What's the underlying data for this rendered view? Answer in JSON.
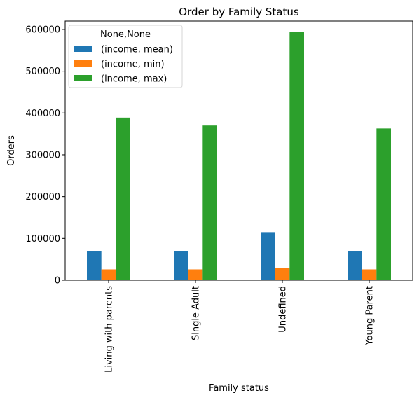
{
  "chart_data": {
    "type": "bar",
    "title": "Order by Family Status",
    "xlabel": "Family status",
    "ylabel": "Orders",
    "categories": [
      "Living with parents",
      "Single Adult",
      "Undefined",
      "Young Parent"
    ],
    "ylim": [
      0,
      620000
    ],
    "yticks": [
      0,
      100000,
      200000,
      300000,
      400000,
      500000,
      600000
    ],
    "series": [
      {
        "name": "(income, mean)",
        "color": "#1f77b4",
        "values": [
          70000,
          70000,
          115000,
          70000
        ]
      },
      {
        "name": "(income, min)",
        "color": "#ff7f0e",
        "values": [
          26000,
          26000,
          29000,
          26000
        ]
      },
      {
        "name": "(income, max)",
        "color": "#2ca02c",
        "values": [
          389000,
          370000,
          594000,
          363000
        ]
      }
    ],
    "legend": {
      "title": "None,None",
      "position": "top-left"
    },
    "grid": false
  }
}
